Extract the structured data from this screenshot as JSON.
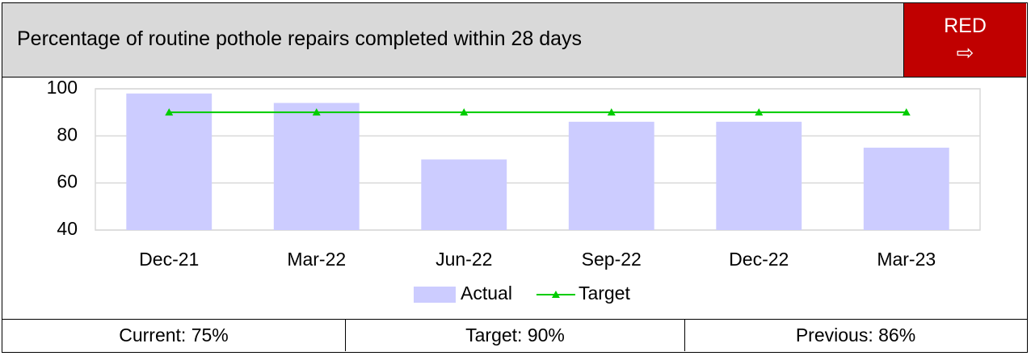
{
  "header": {
    "title": "Percentage of routine pothole repairs completed within 28 days",
    "status": "RED"
  },
  "chart_data": {
    "type": "bar",
    "categories": [
      "Dec-21",
      "Mar-22",
      "Jun-22",
      "Sep-22",
      "Dec-22",
      "Mar-23"
    ],
    "series": [
      {
        "name": "Actual",
        "type": "bar",
        "color": "#ccccff",
        "values": [
          98,
          94,
          70,
          86,
          86,
          75
        ]
      },
      {
        "name": "Target",
        "type": "line",
        "color": "#00cc00",
        "values": [
          90,
          90,
          90,
          90,
          90,
          90
        ]
      }
    ],
    "ylim": [
      40,
      100
    ],
    "yticks": [
      40,
      60,
      80,
      100
    ],
    "grid": true,
    "legend": "bottom"
  },
  "footer": {
    "cells": [
      "Current: 75%",
      "Target: 90%",
      "Previous: 86%"
    ]
  }
}
